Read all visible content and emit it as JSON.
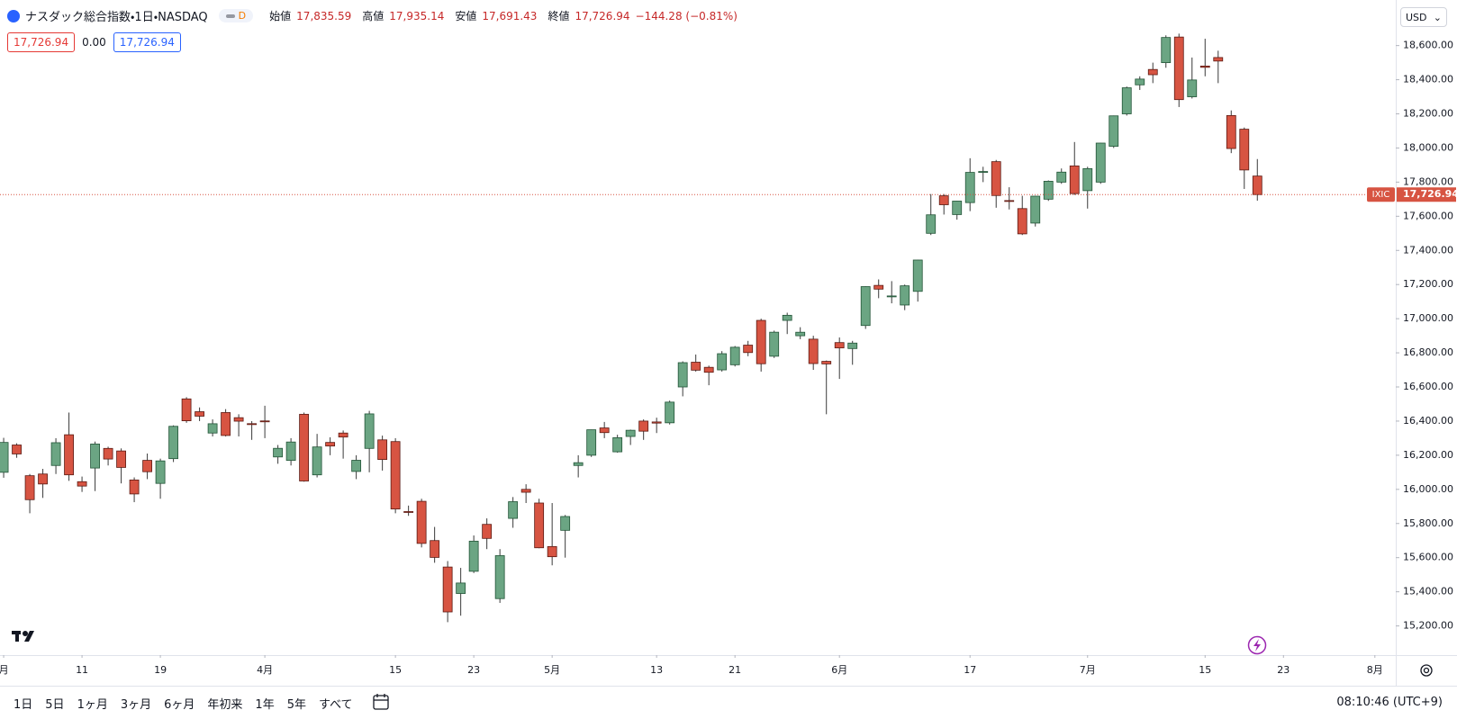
{
  "header": {
    "title": "ナスダック総合指数・1日・NASDAQ",
    "badge": "D",
    "open_label": "始値",
    "open": "17,835.59",
    "high_label": "高値",
    "high": "17,935.14",
    "low_label": "安値",
    "low": "17,691.43",
    "close_label": "終値",
    "close": "17,726.94",
    "change": "−144.28 (−0.81%)"
  },
  "quote": [
    "17,726.94",
    "0.00",
    "17,726.94"
  ],
  "currency": "USD",
  "chart_data": {
    "type": "candlestick",
    "open": [
      16100,
      16260,
      16080,
      16090,
      16140,
      16320,
      16045,
      16125,
      16240,
      16225,
      16055,
      16170,
      16035,
      16180,
      16530,
      16455,
      16330,
      16450,
      16420,
      16385,
      16401,
      16190,
      16170,
      16440,
      16085,
      16275,
      16330,
      16105,
      16240,
      16290,
      16280,
      15870,
      15930,
      15700,
      15545,
      15390,
      15520,
      15795,
      15360,
      15830,
      16000,
      15920,
      15665,
      15760,
      16140,
      16200,
      16360,
      16220,
      16310,
      16400,
      16395,
      16390,
      16600,
      16745,
      16715,
      16700,
      16730,
      16845,
      16990,
      16780,
      16990,
      16900,
      16880,
      16750,
      16860,
      16825,
      16960,
      17195,
      17130,
      17080,
      17160,
      17500,
      17720,
      17610,
      17680,
      17860,
      17920,
      17692,
      17645,
      17560,
      17700,
      17800,
      17895,
      17750,
      17800,
      18010,
      18200,
      18370,
      18460,
      18500,
      18650,
      18300,
      18480,
      18530,
      18190,
      18110,
      17835.59
    ],
    "high": [
      16302,
      16270,
      16090,
      16120,
      16300,
      16450,
      16075,
      16280,
      16250,
      16240,
      16070,
      16210,
      16180,
      16375,
      16540,
      16480,
      16410,
      16470,
      16440,
      16400,
      16490,
      16260,
      16300,
      16450,
      16325,
      16305,
      16345,
      16200,
      16460,
      16315,
      16300,
      15905,
      15945,
      15780,
      15580,
      15540,
      15730,
      15830,
      15650,
      15955,
      16030,
      15945,
      15920,
      15850,
      16200,
      16350,
      16395,
      16320,
      16350,
      16410,
      16420,
      16520,
      16750,
      16790,
      16725,
      16810,
      16840,
      16870,
      17000,
      16930,
      17035,
      16950,
      16900,
      16755,
      16890,
      16870,
      17190,
      17230,
      17220,
      17200,
      17345,
      17730,
      17730,
      17690,
      17940,
      17890,
      17930,
      17770,
      17720,
      17720,
      17810,
      17880,
      18035,
      17890,
      18030,
      18190,
      18360,
      18420,
      18500,
      18660,
      18670,
      18530,
      18640,
      18570,
      18220,
      18120,
      17935.14
    ],
    "low": [
      16068,
      16185,
      15860,
      15950,
      16090,
      16050,
      15985,
      15990,
      16140,
      16035,
      15925,
      16060,
      15945,
      16160,
      16390,
      16400,
      16310,
      16310,
      16310,
      16290,
      16300,
      16150,
      16140,
      16045,
      16070,
      16200,
      16180,
      16060,
      16100,
      16110,
      15860,
      15845,
      15660,
      15570,
      15222,
      15260,
      15510,
      15650,
      15335,
      15775,
      15920,
      15655,
      15555,
      15600,
      16070,
      16190,
      16300,
      16215,
      16260,
      16290,
      16330,
      16380,
      16545,
      16690,
      16610,
      16690,
      16720,
      16780,
      16690,
      16770,
      16910,
      16880,
      16700,
      16440,
      16647,
      16730,
      16940,
      17120,
      17090,
      17050,
      17100,
      17490,
      17610,
      17580,
      17630,
      17800,
      17650,
      17640,
      17490,
      17540,
      17690,
      17790,
      17725,
      17645,
      17790,
      18000,
      18190,
      18340,
      18380,
      18470,
      18240,
      18290,
      18420,
      18380,
      17970,
      17760,
      17691.43
    ],
    "close": [
      16274.94,
      16207.51,
      15939.59,
      16031.54,
      16273.38,
      16085.11,
      16019.27,
      16265.64,
      16177.77,
      16128.53,
      15973.17,
      16103.45,
      16166.79,
      16369.41,
      16401.84,
      16428.82,
      16384.47,
      16315.7,
      16399.52,
      16379.46,
      16396.83,
      16240.45,
      16277.46,
      16049.08,
      16248.52,
      16253.96,
      16306.64,
      16170.36,
      16442.2,
      16175.09,
      15885.02,
      15865.25,
      15683.37,
      15601.5,
      15282.01,
      15451.31,
      15696.64,
      15712.75,
      15611.76,
      15927.9,
      15983.08,
      15657.82,
      15605.48,
      15840.96,
      16156.33,
      16349.25,
      16332.56,
      16302.76,
      16346.26,
      16340.87,
      16388.24,
      16511.18,
      16742.39,
      16698.32,
      16685.97,
      16794.87,
      16832.62,
      16801.54,
      16736.03,
      16920.79,
      17019.88,
      16920.58,
      16737.08,
      16735.02,
      16828.67,
      16857.05,
      17187.9,
      17173.12,
      17133.13,
      17192.53,
      17343.55,
      17608.44,
      17667.56,
      17688.88,
      17857.02,
      17862.23,
      17721.59,
      17689.36,
      17496.82,
      17717.65,
      17805.16,
      17858.68,
      17732.6,
      17879.3,
      18028.76,
      18188.3,
      18352.76,
      18403.74,
      18429.29,
      18647.45,
      18283.41,
      18398.45,
      18472.57,
      18509.34,
      17996.92,
      17871.22,
      17726.94
    ],
    "xlim": [
      -0.28,
      106.6
    ],
    "xticks": [
      {
        "value": 0,
        "label": "月"
      },
      {
        "value": 6,
        "label": "11"
      },
      {
        "value": 12,
        "label": "19"
      },
      {
        "value": 20,
        "label": "4月"
      },
      {
        "value": 30,
        "label": "15"
      },
      {
        "value": 36,
        "label": "23"
      },
      {
        "value": 42,
        "label": "5月"
      },
      {
        "value": 50,
        "label": "13"
      },
      {
        "value": 56,
        "label": "21"
      },
      {
        "value": 64,
        "label": "6月"
      },
      {
        "value": 74,
        "label": "17"
      },
      {
        "value": 83,
        "label": "7月"
      },
      {
        "value": 92,
        "label": "15"
      },
      {
        "value": 98,
        "label": "23"
      },
      {
        "value": 105,
        "label": "8月"
      }
    ],
    "ylim": [
      15029,
      18867
    ],
    "yticks": [
      {
        "value": 15200,
        "label": "15,200.00"
      },
      {
        "value": 15400,
        "label": "15,400.00"
      },
      {
        "value": 15600,
        "label": "15,600.00"
      },
      {
        "value": 15800,
        "label": "15,800.00"
      },
      {
        "value": 16000,
        "label": "16,000.00"
      },
      {
        "value": 16200,
        "label": "16,200.00"
      },
      {
        "value": 16400,
        "label": "16,400.00"
      },
      {
        "value": 16600,
        "label": "16,600.00"
      },
      {
        "value": 16800,
        "label": "16,800.00"
      },
      {
        "value": 17000,
        "label": "17,000.00"
      },
      {
        "value": 17200,
        "label": "17,200.00"
      },
      {
        "value": 17400,
        "label": "17,400.00"
      },
      {
        "value": 17600,
        "label": "17,600.00"
      },
      {
        "value": 17800,
        "label": "17,800.00"
      },
      {
        "value": 18000,
        "label": "18,000.00"
      },
      {
        "value": 18200,
        "label": "18,200.00"
      },
      {
        "value": 18400,
        "label": "18,400.00"
      },
      {
        "value": 18600,
        "label": "18,600.00"
      }
    ],
    "grid": false,
    "up_color": "#6ba583",
    "up_border": "#225437",
    "down_color": "#d75442",
    "down_border": "#5b1a13",
    "wick_color": "#3a3a3a",
    "last_symbol": "IXIC",
    "last_value_label": "17,726.94"
  },
  "timeframes": [
    "1日",
    "5日",
    "1ヶ月",
    "3ヶ月",
    "6ヶ月",
    "年初来",
    "1年",
    "5年",
    "すべて"
  ],
  "clock": "08:10:46 (UTC+9)"
}
